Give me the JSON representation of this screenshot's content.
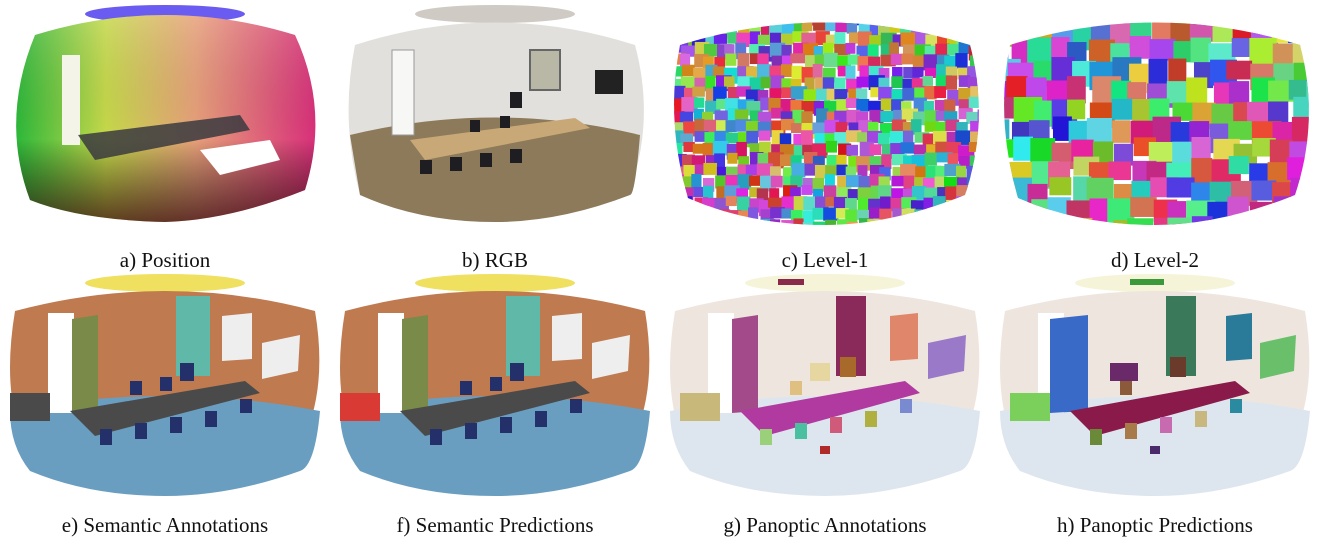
{
  "figure": {
    "panels": [
      {
        "id": "a",
        "caption": "a) Position",
        "style": "position"
      },
      {
        "id": "b",
        "caption": "b) RGB",
        "style": "rgb"
      },
      {
        "id": "c",
        "caption": "c) Level-1",
        "style": "level1"
      },
      {
        "id": "d",
        "caption": "d) Level-2",
        "style": "level2"
      },
      {
        "id": "e",
        "caption": "e) Semantic Annotations",
        "style": "semantic"
      },
      {
        "id": "f",
        "caption": "f) Semantic Predictions",
        "style": "semantic_pred"
      },
      {
        "id": "g",
        "caption": "g) Panoptic Annotations",
        "style": "panoptic"
      },
      {
        "id": "h",
        "caption": "h) Panoptic Predictions",
        "style": "panoptic_pred"
      }
    ]
  },
  "colors": {
    "semantic_wall": "#bf7a50",
    "semantic_floor": "#6a9ec0",
    "semantic_ceiling": "#f0e060",
    "semantic_chair": "#24306a",
    "semantic_table": "#4a4a4a",
    "semantic_door": "#7a8a48",
    "semantic_window": "#5fb8a8",
    "semantic_board": "#eeeeee",
    "panoptic_bg": "#eee6de",
    "panoptic_floor": "#dde6ee",
    "rgb_wall": "#e2e0dc",
    "rgb_floor": "#8c7a5a",
    "rgb_table": "#c9a877"
  }
}
